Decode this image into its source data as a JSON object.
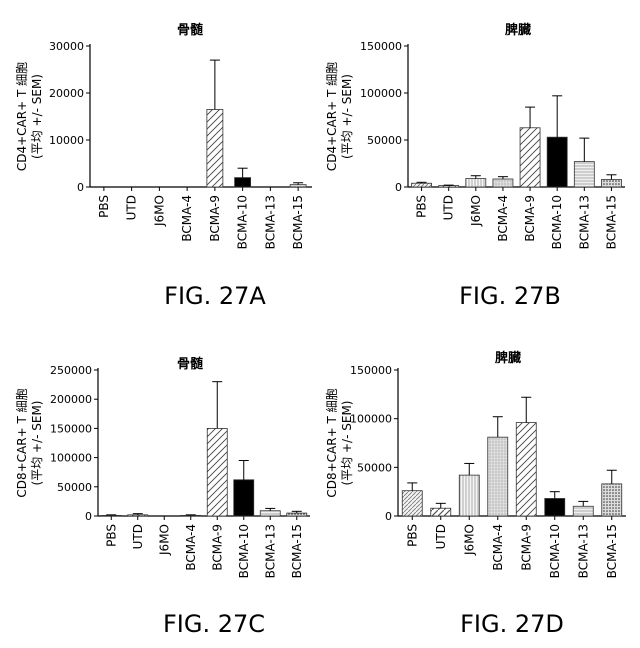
{
  "chart_data": [
    {
      "figure": "FIG. 27A",
      "type": "bar",
      "title": "骨髄",
      "ylabel_lines": [
        "CD4+CAR+ T 細胞",
        "(平均 +/- SEM)"
      ],
      "ylim": [
        0,
        30000
      ],
      "yticks": [
        0,
        10000,
        20000,
        30000
      ],
      "categories": [
        "PBS",
        "UTD",
        "J6MO",
        "BCMA-4",
        "BCMA-9",
        "BCMA-10",
        "BCMA-13",
        "BCMA-15"
      ],
      "values": [
        0,
        0,
        0,
        0,
        16500,
        2000,
        0,
        500
      ],
      "errors": [
        0,
        0,
        0,
        0,
        10500,
        2000,
        0,
        400
      ]
    },
    {
      "figure": "FIG. 27B",
      "type": "bar",
      "title": "脾臓",
      "ylabel_lines": [
        "CD4+CAR+ T 細胞",
        "(平均 +/- SEM)"
      ],
      "ylim": [
        0,
        150000
      ],
      "yticks": [
        0,
        50000,
        100000,
        150000
      ],
      "categories": [
        "PBS",
        "UTD",
        "J6MO",
        "BCMA-4",
        "BCMA-9",
        "BCMA-10",
        "BCMA-13",
        "BCMA-15"
      ],
      "values": [
        4000,
        1500,
        9000,
        8500,
        63000,
        53000,
        27000,
        8000
      ],
      "errors": [
        1000,
        500,
        3000,
        2500,
        22000,
        44000,
        25000,
        5000
      ]
    },
    {
      "figure": "FIG. 27C",
      "type": "bar",
      "title": "骨髄",
      "ylabel_lines": [
        "CD8+CAR+ T 細胞",
        "(平均 +/- SEM)"
      ],
      "ylim": [
        0,
        250000
      ],
      "yticks": [
        0,
        50000,
        100000,
        150000,
        200000,
        250000
      ],
      "categories": [
        "PBS",
        "UTD",
        "J6MO",
        "BCMA-4",
        "BCMA-9",
        "BCMA-10",
        "BCMA-13",
        "BCMA-15"
      ],
      "values": [
        1000,
        2000,
        0,
        1000,
        150000,
        62000,
        9000,
        5000
      ],
      "errors": [
        1000,
        2000,
        0,
        1000,
        80000,
        33000,
        4000,
        3000
      ]
    },
    {
      "figure": "FIG. 27D",
      "type": "bar",
      "title": "脾臓",
      "ylabel_lines": [
        "CD8+CAR+ T 細胞",
        "(平均 +/- SEM)"
      ],
      "ylim": [
        0,
        150000
      ],
      "yticks": [
        0,
        50000,
        100000,
        150000
      ],
      "categories": [
        "PBS",
        "UTD",
        "J6MO",
        "BCMA-4",
        "BCMA-9",
        "BCMA-10",
        "BCMA-13",
        "BCMA-15"
      ],
      "values": [
        26000,
        8000,
        42000,
        81000,
        96000,
        18000,
        10000,
        33000
      ],
      "errors": [
        8000,
        5000,
        12000,
        21000,
        26000,
        7000,
        5000,
        14000
      ]
    }
  ],
  "patterns": [
    "hatch-dense",
    "diag-light",
    "vertical-lines",
    "grid-fine",
    "diag-wide",
    "solid-black",
    "horizontal-lines",
    "dots"
  ],
  "colors": {
    "axis": "#000000",
    "bar_edge": "#333333",
    "solid": "#000000"
  }
}
